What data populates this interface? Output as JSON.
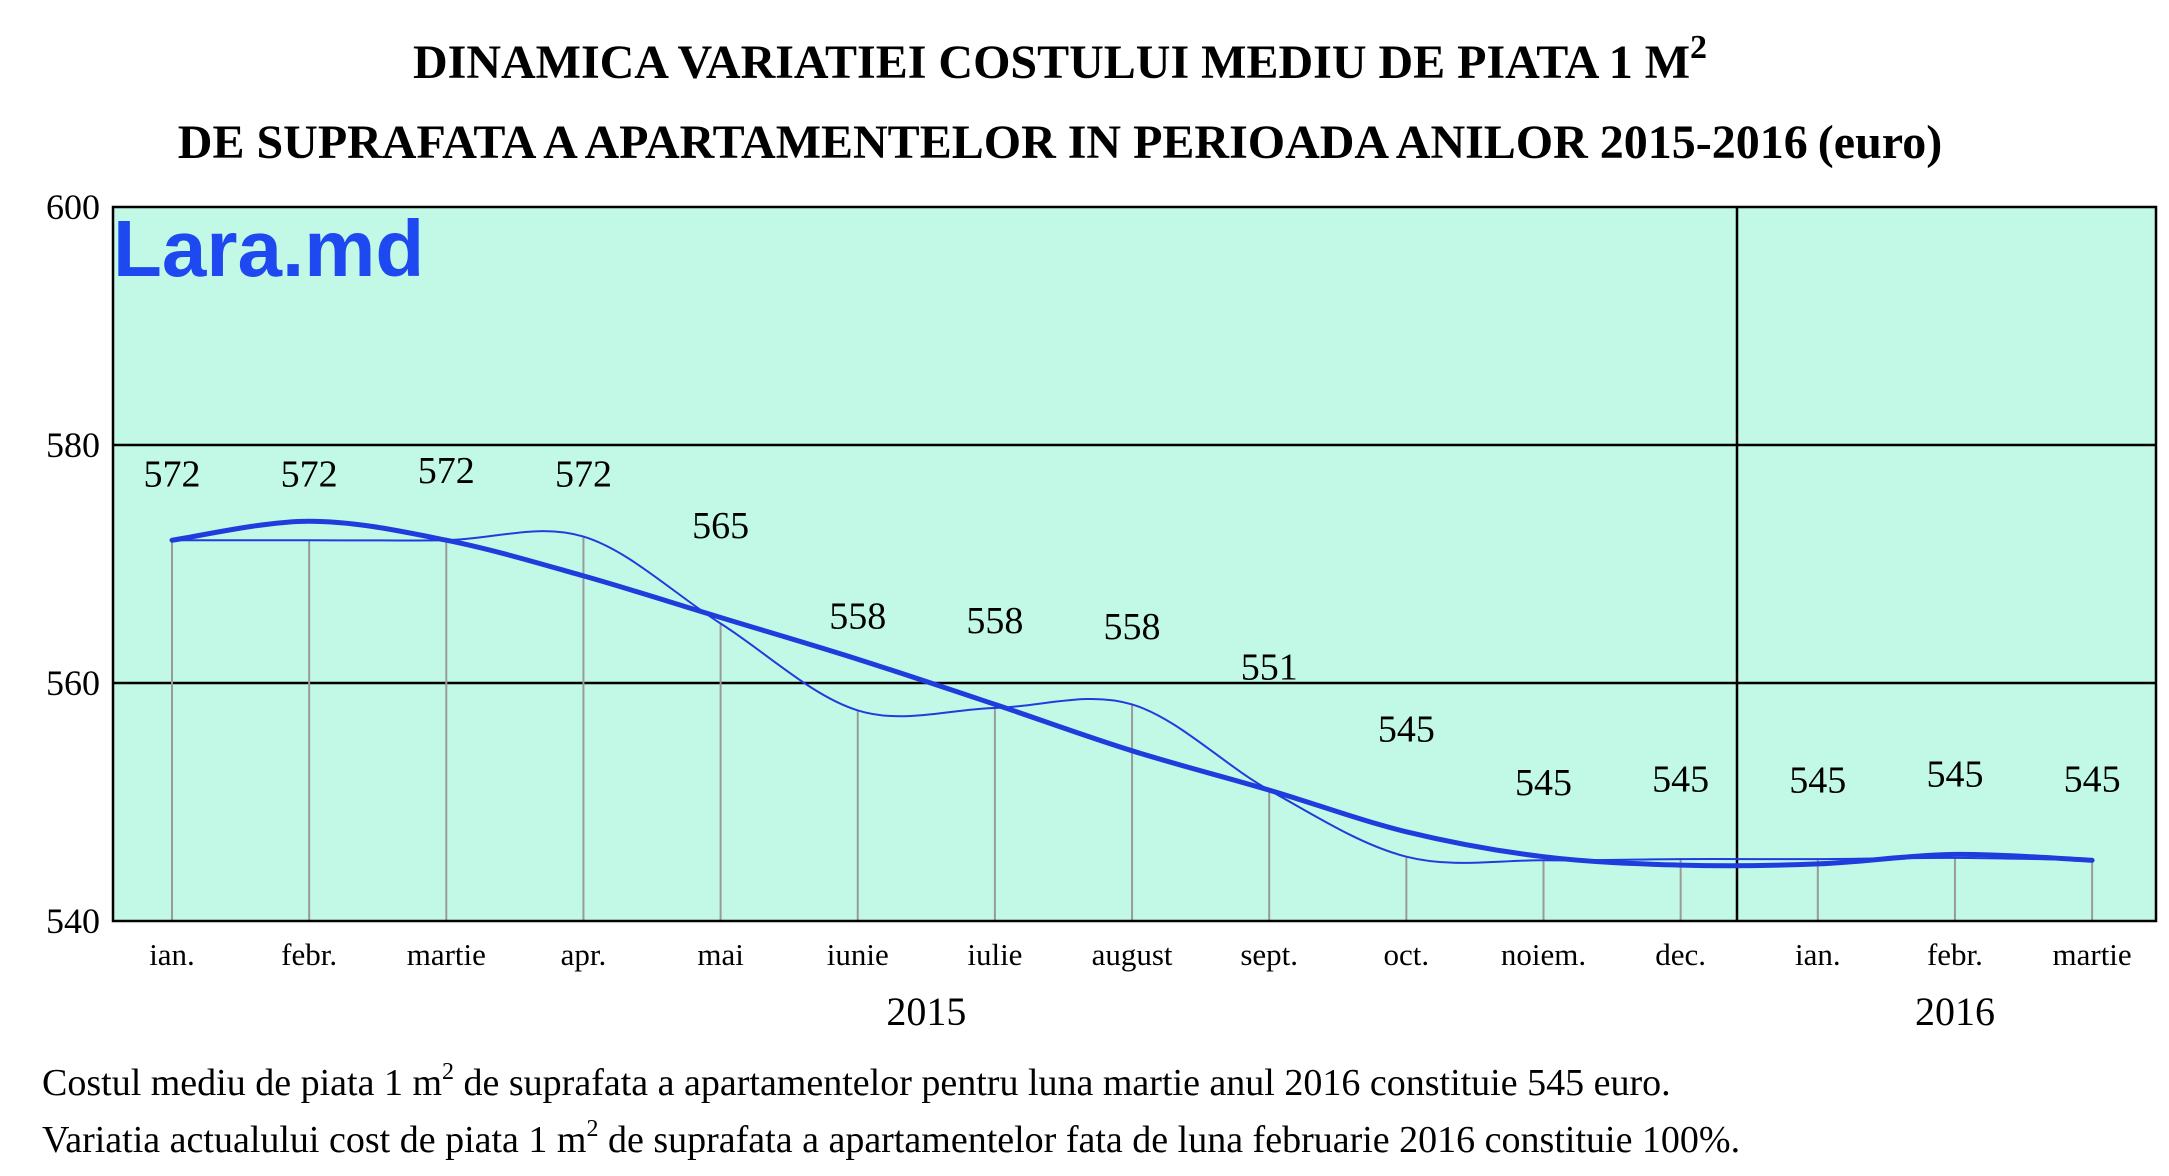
{
  "chart_data": {
    "type": "line",
    "title": {
      "line1": "DINAMICA VARIATIEI COSTULUI MEDIU DE PIATA 1 M",
      "line1_sup": "2",
      "line2": "DE SUPRAFATA A APARTAMENTELOR IN PERIOADA ANILOR 2015-2016",
      "line2_unit": "(euro)"
    },
    "watermark": "Lara.md",
    "categories": [
      "ian.",
      "febr.",
      "martie",
      "apr.",
      "mai",
      "iunie",
      "iulie",
      "august",
      "sept.",
      "oct.",
      "noiem.",
      "dec.",
      "ian.",
      "febr.",
      "martie"
    ],
    "years": [
      {
        "label": "2015",
        "from": 0,
        "to": 11
      },
      {
        "label": "2016",
        "from": 12,
        "to": 14
      }
    ],
    "series": [
      {
        "values": [
          572,
          572,
          572,
          572.3,
          565,
          557.7,
          557.9,
          558.2,
          551,
          545.4,
          545.1,
          545.2,
          545.2,
          545.3,
          545.1
        ]
      },
      {
        "values": [
          572,
          573.6,
          572,
          569,
          565.5,
          562,
          558.2,
          554.3,
          551,
          547.5,
          545.4,
          544.7,
          544.8,
          545.6,
          545.1
        ]
      }
    ],
    "data_labels": [
      "572",
      "572",
      "572",
      "572",
      "565",
      "558",
      "558",
      "558",
      "551",
      "545",
      "545",
      "545",
      "545",
      "545",
      "545"
    ],
    "yticks": [
      540,
      560,
      580,
      600
    ],
    "ylim": [
      540,
      600
    ],
    "grid": true,
    "year_divider_after": 11,
    "colors": {
      "plot_bg": "#c2f9e6",
      "line": "#1f3ddd",
      "watermark": "#1e49f0",
      "grid": "#000000",
      "drop_line": "#9a9a9a"
    }
  },
  "notes": {
    "line1_a": "Costul mediu de piata 1 m",
    "line1_sup": "2",
    "line1_b": " de suprafata a apartamentelor pentru luna martie anul 2016 constituie 545 euro.",
    "line2_a": "Variatia actualului cost de piata 1 m",
    "line2_sup": "2",
    "line2_b": " de suprafata a apartamentelor fata de luna februarie 2016 constituie 100%."
  }
}
